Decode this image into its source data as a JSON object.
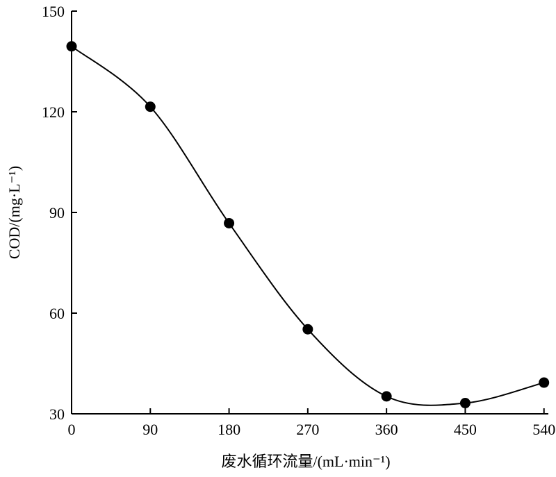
{
  "chart_data": {
    "type": "line",
    "x_label": "废水循环流量/(mL·min⁻¹)",
    "y_label": "COD/(mg·L⁻¹)",
    "x": [
      0,
      90,
      180,
      270,
      360,
      450,
      540
    ],
    "series": [
      {
        "name": "COD",
        "color": "#000000",
        "values": [
          139.5,
          121.5,
          86.8,
          55.2,
          35.2,
          33.2,
          39.3
        ]
      }
    ],
    "xlim": [
      0,
      545
    ],
    "xticks": [
      0,
      90,
      180,
      270,
      360,
      450,
      540
    ],
    "ylim": [
      30,
      150
    ],
    "yticks": [
      30,
      60,
      90,
      120,
      150
    ]
  }
}
